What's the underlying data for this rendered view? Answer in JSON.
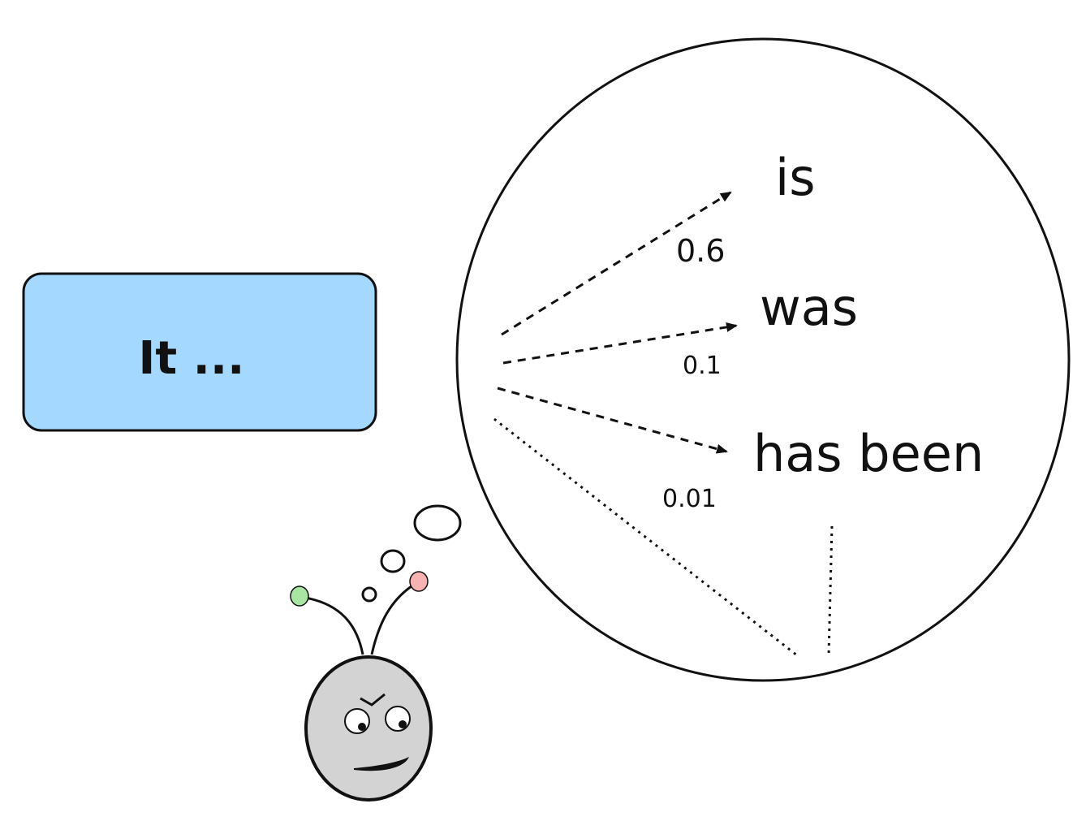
{
  "prompt": {
    "text": "It ..."
  },
  "next_tokens": [
    {
      "word": "is",
      "probability": "0.6"
    },
    {
      "word": "was",
      "probability": "0.1"
    },
    {
      "word": "has been",
      "probability": "0.01"
    }
  ],
  "colors": {
    "prompt_box_fill": "#a5d8ff",
    "outline": "#111111",
    "head_fill": "#d3d3d3",
    "antenna_left_tip": "#a8e6a3",
    "antenna_right_tip": "#f7b2b2"
  },
  "icons": {
    "character": "robot-thinker-icon",
    "thought_bubble": "thought-bubble-icon"
  }
}
